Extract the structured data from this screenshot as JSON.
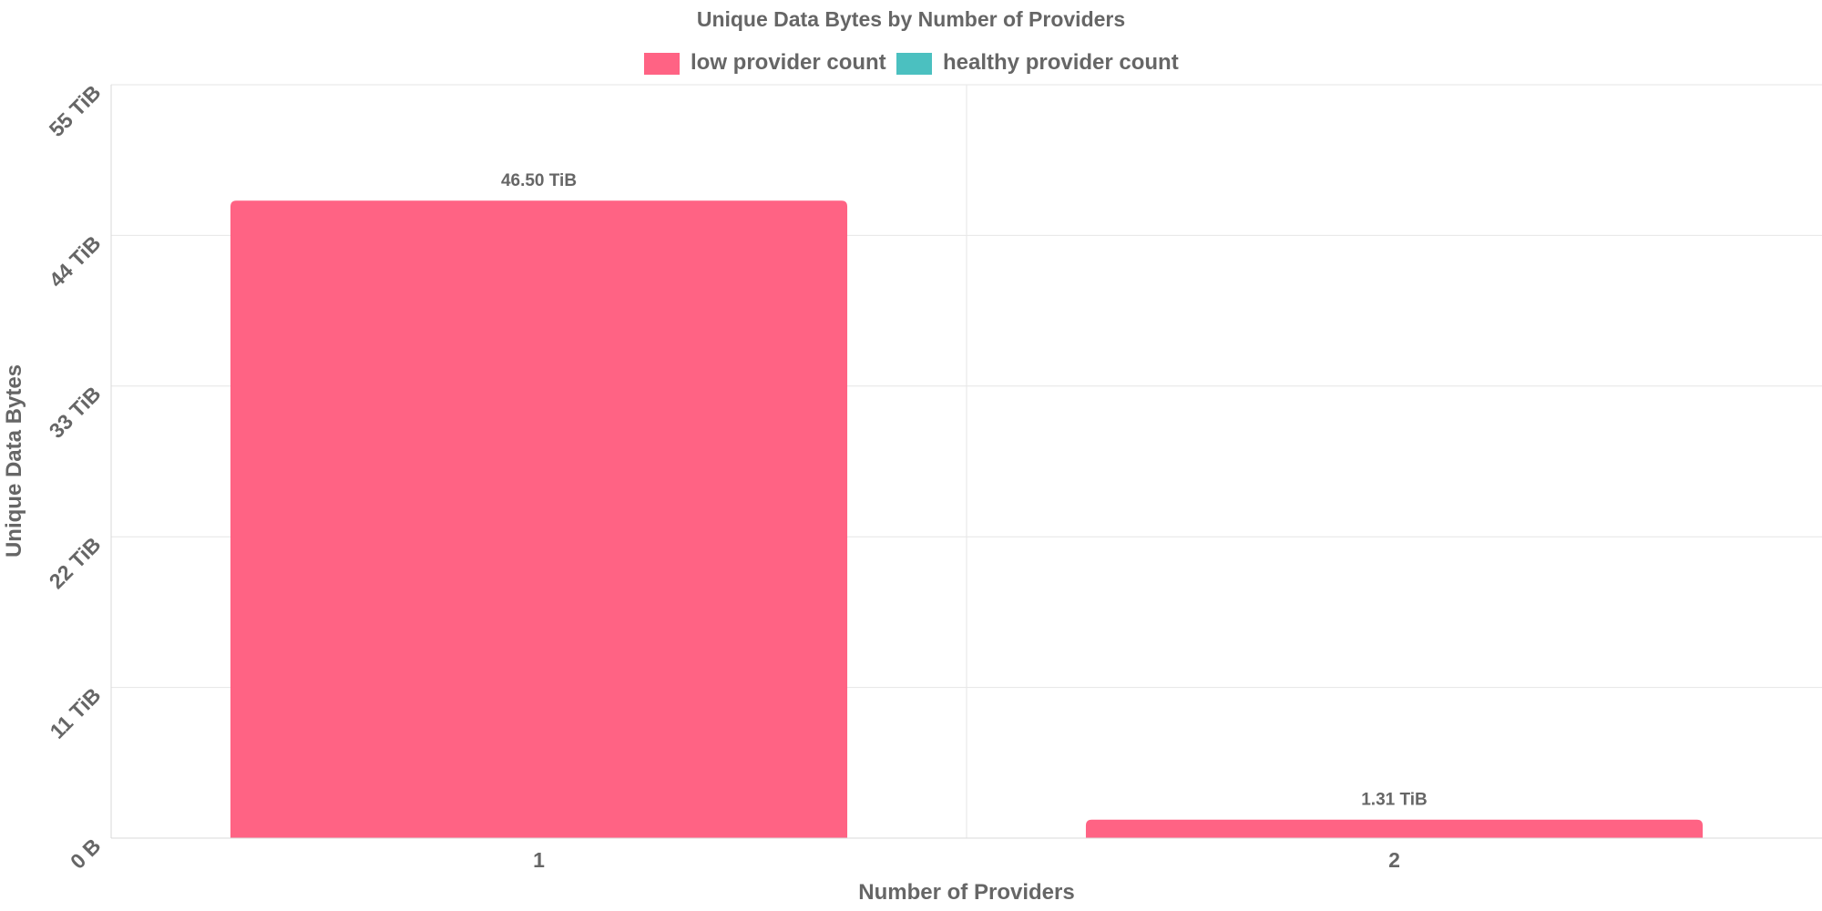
{
  "chart_data": {
    "type": "bar",
    "title": "Unique Data Bytes by Number of Providers",
    "xlabel": "Number of Providers",
    "ylabel": "Unique Data Bytes",
    "categories": [
      "1",
      "2"
    ],
    "values": [
      46.5,
      1.31
    ],
    "value_unit": "TiB",
    "data_labels": [
      "46.50 TiB",
      "1.31 TiB"
    ],
    "bar_series": [
      "low provider count",
      "low provider count"
    ],
    "ylim": [
      0,
      55
    ],
    "y_ticks": [
      0,
      11,
      22,
      33,
      44,
      55
    ],
    "y_tick_labels": [
      "0 B",
      "11 TiB",
      "22 TiB",
      "33 TiB",
      "44 TiB",
      "55 TiB"
    ],
    "grid": true,
    "legend_position": "top-center",
    "series": [
      {
        "name": "low provider count",
        "color": "#ff6384"
      },
      {
        "name": "healthy provider count",
        "color": "#4bc0c0"
      }
    ]
  }
}
